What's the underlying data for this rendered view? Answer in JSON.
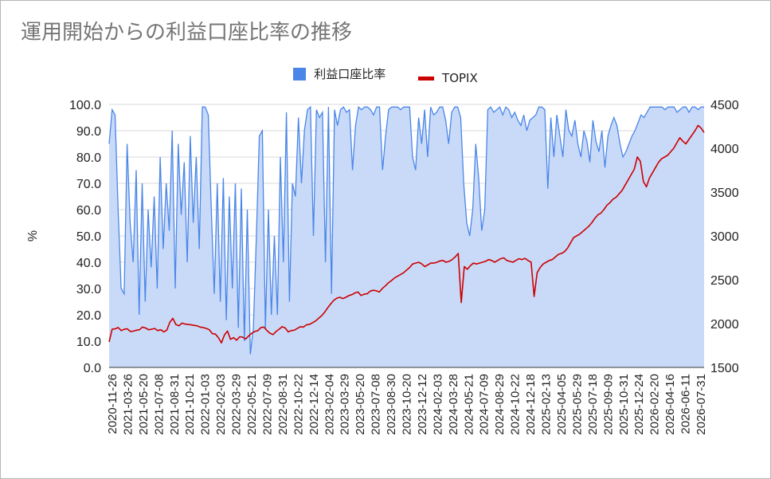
{
  "title": "運用開始からの利益口座比率の推移",
  "legend": {
    "series1": "利益口座比率",
    "series2": "TOPIX"
  },
  "colors": {
    "ratio_line": "#4a86e8",
    "ratio_fill": "#c9daf8",
    "topix": "#cc0000",
    "grid": "#d9d9d9"
  },
  "chart_data": {
    "type": "area",
    "title": "運用開始からの利益口座比率の推移",
    "ylabel": "%",
    "y2label": "",
    "ylim": [
      0,
      100
    ],
    "y2lim": [
      1500,
      4500
    ],
    "yticks": [
      "0.0",
      "10.0",
      "20.0",
      "30.0",
      "40.0",
      "50.0",
      "60.0",
      "70.0",
      "80.0",
      "90.0",
      "100.0"
    ],
    "y2ticks": [
      "1500",
      "2000",
      "2500",
      "3000",
      "3500",
      "4000",
      "4500"
    ],
    "x_tick_labels": [
      "2020-11-26",
      "2021-03-26",
      "2021-05-20",
      "2021-07-08",
      "2021-08-31",
      "2021-10-21",
      "2022-01-03",
      "2022-02-03",
      "2022-03-29",
      "2022-05-21",
      "2022-07-09",
      "2022-08-31",
      "2022-10-22",
      "2022-12-14",
      "2023-02-04",
      "2023-03-29",
      "2023-05-20",
      "2023-07-08",
      "2023-08-30",
      "2023-10-20",
      "2023-12-12",
      "2024-02-03",
      "2024-03-28",
      "2024-05-21",
      "2024-07-09",
      "2024-08-29",
      "2024-10-22",
      "2024-12-18",
      "2025-02-13",
      "2025-04-05",
      "2025-05-29",
      "2025-07-18",
      "2025-09-09",
      "2025-10-31",
      "2025-12-24",
      "2026-02-20",
      "2026-04-16",
      "2026-06-11",
      "2026-07-31"
    ],
    "legend_position": "top",
    "grid": true,
    "series": [
      {
        "name": "利益口座比率",
        "axis": "left",
        "values": [
          85,
          98,
          96,
          60,
          30,
          28,
          85,
          55,
          40,
          75,
          20,
          70,
          25,
          60,
          38,
          65,
          30,
          80,
          45,
          70,
          52,
          90,
          30,
          85,
          58,
          78,
          40,
          88,
          55,
          80,
          45,
          99,
          99,
          96,
          60,
          28,
          70,
          25,
          72,
          18,
          65,
          30,
          70,
          15,
          68,
          10,
          60,
          5,
          15,
          50,
          88,
          90,
          15,
          60,
          20,
          50,
          20,
          80,
          40,
          97,
          25,
          70,
          65,
          95,
          70,
          90,
          98,
          99,
          50,
          98,
          95,
          97,
          40,
          99,
          28,
          98,
          92,
          98,
          99,
          97,
          98,
          75,
          92,
          99,
          98,
          99,
          99,
          98,
          96,
          99,
          99,
          75,
          88,
          98,
          99,
          99,
          99,
          98,
          99,
          99,
          99,
          80,
          75,
          95,
          85,
          98,
          80,
          99,
          96,
          97,
          99,
          99,
          94,
          85,
          97,
          99,
          99,
          95,
          70,
          55,
          50,
          60,
          85,
          72,
          52,
          60,
          98,
          99,
          97,
          98,
          99,
          96,
          99,
          98,
          95,
          97,
          94,
          92,
          96,
          90,
          94,
          95,
          96,
          99,
          99,
          98,
          68,
          95,
          80,
          96,
          88,
          80,
          98,
          90,
          88,
          94,
          85,
          80,
          90,
          86,
          78,
          94,
          86,
          82,
          90,
          76,
          88,
          92,
          95,
          92,
          85,
          80,
          82,
          85,
          88,
          90,
          93,
          96,
          95,
          97,
          99,
          99,
          99,
          99,
          99,
          98,
          99,
          99,
          99,
          97,
          98,
          99,
          99,
          97,
          99,
          99,
          98,
          99,
          99
        ]
      },
      {
        "name": "TOPIX",
        "axis": "right",
        "values": [
          1790,
          1935,
          1940,
          1955,
          1920,
          1935,
          1940,
          1910,
          1915,
          1925,
          1930,
          1960,
          1950,
          1930,
          1935,
          1945,
          1920,
          1930,
          1905,
          1925,
          2015,
          2060,
          1990,
          1975,
          2005,
          1995,
          1990,
          1985,
          1980,
          1975,
          1960,
          1955,
          1945,
          1930,
          1885,
          1880,
          1840,
          1780,
          1870,
          1915,
          1820,
          1840,
          1810,
          1850,
          1845,
          1825,
          1860,
          1890,
          1910,
          1920,
          1955,
          1960,
          1920,
          1890,
          1875,
          1910,
          1935,
          1965,
          1950,
          1905,
          1920,
          1925,
          1945,
          1965,
          1960,
          1985,
          1990,
          2010,
          2030,
          2060,
          2090,
          2130,
          2180,
          2225,
          2265,
          2290,
          2300,
          2285,
          2300,
          2320,
          2330,
          2350,
          2360,
          2320,
          2335,
          2340,
          2370,
          2380,
          2375,
          2360,
          2400,
          2430,
          2465,
          2490,
          2520,
          2540,
          2560,
          2580,
          2610,
          2640,
          2680,
          2690,
          2700,
          2680,
          2650,
          2670,
          2690,
          2690,
          2700,
          2715,
          2720,
          2700,
          2710,
          2730,
          2760,
          2800,
          2240,
          2650,
          2620,
          2660,
          2690,
          2680,
          2690,
          2700,
          2710,
          2730,
          2720,
          2700,
          2720,
          2740,
          2750,
          2720,
          2710,
          2700,
          2720,
          2740,
          2730,
          2745,
          2720,
          2700,
          2310,
          2580,
          2640,
          2680,
          2700,
          2720,
          2730,
          2760,
          2790,
          2800,
          2820,
          2860,
          2920,
          2980,
          3000,
          3020,
          3050,
          3080,
          3110,
          3150,
          3200,
          3240,
          3260,
          3300,
          3350,
          3380,
          3420,
          3440,
          3480,
          3520,
          3580,
          3640,
          3700,
          3760,
          3900,
          3850,
          3620,
          3560,
          3660,
          3720,
          3780,
          3840,
          3880,
          3900,
          3920,
          3960,
          4000,
          4060,
          4120,
          4080,
          4050,
          4100,
          4150,
          4200,
          4260,
          4230,
          4180
        ]
      }
    ]
  }
}
